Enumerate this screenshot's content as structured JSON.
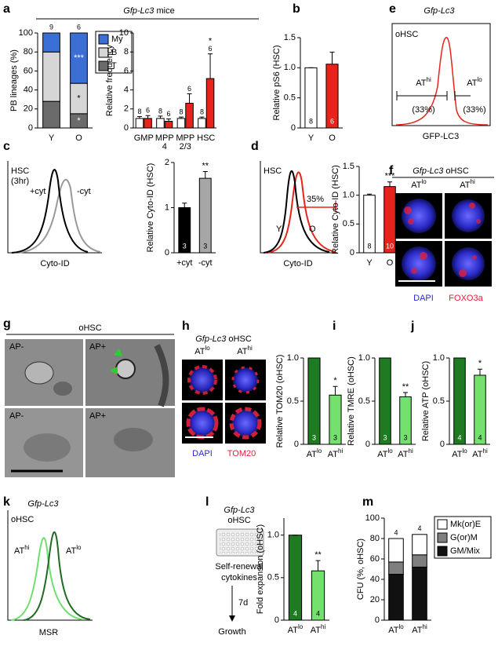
{
  "chart_data": [
    {
      "type": "stacked_bar",
      "ylabel": "PB lineages (%)",
      "categories": [
        "Y",
        "O"
      ],
      "ylim": [
        0,
        100
      ],
      "yticks": [
        0,
        20,
        40,
        60,
        80,
        100
      ],
      "legend": "right",
      "n_labels": [
        9,
        6
      ],
      "series": [
        {
          "name": "T",
          "color": "#6b6b6b",
          "values": [
            28,
            15
          ],
          "significance": [
            null,
            "*"
          ]
        },
        {
          "name": "B",
          "color": "#d6d6d6",
          "values": [
            52,
            32
          ],
          "significance": [
            null,
            "*"
          ]
        },
        {
          "name": "My",
          "color": "#3b6fd6",
          "values": [
            20,
            53
          ],
          "significance": [
            null,
            "***"
          ]
        }
      ]
    },
    {
      "type": "grouped_bar",
      "ylabel": "Relative frequency",
      "categories": [
        "GMP",
        [
          "MPP",
          "4"
        ],
        [
          "MPP",
          "2/3"
        ],
        "HSC"
      ],
      "ylim": [
        0,
        10
      ],
      "yticks": [
        0,
        2,
        4,
        6,
        8,
        10
      ],
      "series": [
        {
          "color": "#ffffff",
          "values": [
            1,
            1,
            1,
            1
          ],
          "errors": [
            0.2,
            0.25,
            0.15,
            0.15
          ],
          "n_labels": [
            8,
            8,
            8,
            8
          ]
        },
        {
          "color": "#e8231c",
          "values": [
            1.0,
            0.7,
            2.6,
            5.2
          ],
          "errors": [
            0.3,
            0.25,
            1.0,
            2.6
          ],
          "n_labels": [
            6,
            6,
            6,
            6
          ],
          "significance": [
            null,
            null,
            null,
            "*"
          ]
        }
      ]
    },
    {
      "type": "bar",
      "ylabel": "Relative pS6 (HSC)",
      "categories": [
        "Y",
        "O"
      ],
      "values": [
        1,
        1.06
      ],
      "errors": [
        0,
        0.2
      ],
      "colors": [
        "#ffffff",
        "#e8231c"
      ],
      "n_labels": [
        8,
        6
      ],
      "ylim": [
        0,
        1.5
      ],
      "yticks": [
        0,
        0.5,
        {
          "value": 1,
          "label": "1.0"
        },
        1.5
      ]
    },
    {
      "type": "bar",
      "ylabel": "Relative Cyto-ID (HSC)",
      "categories": [
        "+cyt",
        "-cyt"
      ],
      "values": [
        1.0,
        1.65
      ],
      "errors": [
        0.1,
        0.15
      ],
      "colors": [
        "#000000",
        "#a6a6a6"
      ],
      "n_labels": [
        3,
        3
      ],
      "significance": [
        null,
        "**"
      ],
      "ylim": [
        0,
        2
      ],
      "yticks": [
        0,
        1,
        2
      ]
    },
    {
      "type": "bar",
      "ylabel": "Relative Cyto-ID (HSC)",
      "categories": [
        "Y",
        "O"
      ],
      "values": [
        1.0,
        1.15
      ],
      "errors": [
        0.02,
        0.08
      ],
      "colors": [
        "#ffffff",
        "#e8231c"
      ],
      "n_labels": [
        8,
        10
      ],
      "significance": [
        null,
        "***"
      ],
      "ylim": [
        0,
        1.5
      ],
      "yticks": [
        0,
        0.5,
        {
          "value": 1,
          "label": "1.0"
        },
        1.5
      ]
    },
    {
      "type": "bar",
      "ylabel": "Relative TOM20 (oHSC)",
      "categories": [
        {
          "base": "AT",
          "sup": "lo"
        },
        {
          "base": "AT",
          "sup": "hi"
        }
      ],
      "values": [
        1,
        0.57
      ],
      "errors": [
        0,
        0.1
      ],
      "colors": [
        "#1e7b22",
        "#74e06e"
      ],
      "n_labels": [
        3,
        3
      ],
      "significance": [
        null,
        "*"
      ],
      "ylim": [
        0,
        1
      ],
      "yticks": [
        0,
        0.5,
        {
          "value": 1,
          "label": "1.0"
        }
      ]
    },
    {
      "type": "bar",
      "ylabel": "Relative TMRE (oHSC)",
      "categories": [
        {
          "base": "AT",
          "sup": "lo"
        },
        {
          "base": "AT",
          "sup": "hi"
        }
      ],
      "values": [
        1,
        0.55
      ],
      "errors": [
        0,
        0.05
      ],
      "colors": [
        "#1e7b22",
        "#74e06e"
      ],
      "n_labels": [
        3,
        3
      ],
      "significance": [
        null,
        "**"
      ],
      "ylim": [
        0,
        1
      ],
      "yticks": [
        0,
        0.5,
        {
          "value": 1,
          "label": "1.0"
        }
      ]
    },
    {
      "type": "bar",
      "ylabel": "Relative ATP (oHSC)",
      "categories": [
        {
          "base": "AT",
          "sup": "lo"
        },
        {
          "base": "AT",
          "sup": "hi"
        }
      ],
      "values": [
        1,
        0.8
      ],
      "errors": [
        0,
        0.07
      ],
      "colors": [
        "#1e7b22",
        "#74e06e"
      ],
      "n_labels": [
        4,
        4
      ],
      "significance": [
        null,
        "*"
      ],
      "ylim": [
        0,
        1
      ],
      "yticks": [
        0,
        0.5,
        {
          "value": 1,
          "label": "1.0"
        }
      ]
    },
    {
      "type": "bar",
      "ylabel": "Fold expansion (oHSC)",
      "categories": [
        {
          "base": "AT",
          "sup": "lo"
        },
        {
          "base": "AT",
          "sup": "hi"
        }
      ],
      "values": [
        1,
        0.58
      ],
      "errors": [
        0,
        0.12
      ],
      "colors": [
        "#1e7b22",
        "#74e06e"
      ],
      "n_labels": [
        4,
        4
      ],
      "significance": [
        null,
        "**"
      ],
      "ylim": [
        0,
        1.2
      ],
      "yticks": [
        0,
        0.5,
        {
          "value": 1,
          "label": "1.0"
        }
      ]
    },
    {
      "type": "stacked_bar",
      "ylabel": "CFU (%, oHSC)",
      "categories": [
        {
          "base": "AT",
          "sup": "lo"
        },
        {
          "base": "AT",
          "sup": "hi"
        }
      ],
      "ylim": [
        0,
        100
      ],
      "yticks": [
        0,
        20,
        40,
        60,
        80,
        100
      ],
      "legend": "right",
      "n_labels": [
        4,
        4
      ],
      "series": [
        {
          "name": "GM/Mix",
          "color": "#111111",
          "values": [
            45,
            52
          ]
        },
        {
          "name": "G(or)M",
          "color": "#7f7f7f",
          "values": [
            12,
            12
          ]
        },
        {
          "name": "Mk(or)E",
          "color": "#ffffff",
          "values": [
            23,
            20
          ]
        }
      ]
    }
  ],
  "panels": {
    "letters": [
      "a",
      "b",
      "c",
      "d",
      "e",
      "f",
      "g",
      "h",
      "i",
      "j",
      "k",
      "l",
      "m"
    ],
    "a": {
      "header": [
        "Gfp-Lc3",
        "mice"
      ]
    },
    "c": {
      "title": [
        "HSC",
        "(3hr)"
      ],
      "curves": [
        "+cyt",
        "-cyt"
      ],
      "xlabel": "Cyto-ID"
    },
    "d": {
      "title": "HSC",
      "gate": "35%",
      "curves": [
        "Y",
        "O"
      ],
      "xlabel": "Cyto-ID"
    },
    "e": {
      "title": "Gfp-Lc3",
      "inset": "oHSC",
      "gates": [
        {
          "base": "AT",
          "sup": "hi"
        },
        {
          "base": "AT",
          "sup": "lo"
        }
      ],
      "percents": [
        "(33%)",
        "(33%)"
      ],
      "xlabel": "GFP-LC3"
    },
    "f": {
      "title": [
        "Gfp-Lc3",
        "oHSC"
      ],
      "columns": [
        {
          "base": "AT",
          "sup": "lo"
        },
        {
          "base": "AT",
          "sup": "hi"
        }
      ],
      "stains": [
        "DAPI",
        "FOXO3a"
      ]
    },
    "g": {
      "title": "oHSC",
      "tiles": [
        "AP-",
        "AP+",
        "AP-",
        "AP+"
      ]
    },
    "h": {
      "title": [
        "Gfp-Lc3",
        "oHSC"
      ],
      "columns": [
        {
          "base": "AT",
          "sup": "lo"
        },
        {
          "base": "AT",
          "sup": "hi"
        }
      ],
      "stains": [
        "DAPI",
        "TOM20"
      ]
    },
    "k": {
      "title": "Gfp-Lc3",
      "inset": "oHSC",
      "curves": [
        {
          "base": "AT",
          "sup": "hi"
        },
        {
          "base": "AT",
          "sup": "lo"
        }
      ],
      "xlabel": "MSR"
    },
    "l": {
      "title": [
        "Gfp-Lc3",
        "oHSC"
      ],
      "medium": [
        "Self-renewal",
        "cytokines"
      ],
      "time": "7d",
      "readout": "Growth"
    }
  }
}
